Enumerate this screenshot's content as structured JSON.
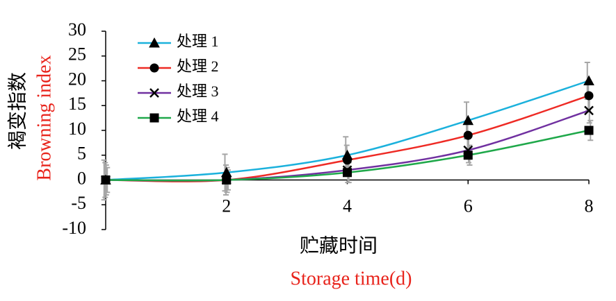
{
  "chart_data": {
    "type": "line",
    "x_label": "贮藏时间",
    "x_label_en": "Storage time(d)",
    "y_label": "褐变指数",
    "y_label_en": "Browning index",
    "x": [
      0,
      2,
      4,
      6,
      8
    ],
    "xlim": [
      0,
      8
    ],
    "xticks": [
      2,
      4,
      6,
      8
    ],
    "ylim": [
      -10,
      30
    ],
    "yticks": [
      -10,
      -5,
      0,
      5,
      10,
      15,
      20,
      25,
      30
    ],
    "legend": "upper left",
    "smooth": true,
    "series": [
      {
        "name": "处理 1",
        "color": "#1bb1dc",
        "marker": "triangle",
        "values": [
          0,
          1.5,
          5,
          12,
          20
        ],
        "errors": [
          4,
          3.7,
          3.7,
          3.7,
          3.7
        ]
      },
      {
        "name": "处理 2",
        "color": "#ee2a24",
        "marker": "circle",
        "values": [
          0,
          0,
          4,
          9,
          17
        ],
        "errors": [
          3.5,
          3,
          3,
          3,
          3
        ]
      },
      {
        "name": "处理 3",
        "color": "#7030a0",
        "marker": "x",
        "values": [
          0,
          0,
          2,
          6,
          14
        ],
        "errors": [
          3,
          2.5,
          2.5,
          2.5,
          2.5
        ]
      },
      {
        "name": "处理 4",
        "color": "#1fa84a",
        "marker": "square",
        "values": [
          0,
          0,
          1.5,
          5,
          10
        ],
        "errors": [
          2.5,
          2,
          2,
          2,
          2
        ]
      }
    ]
  }
}
